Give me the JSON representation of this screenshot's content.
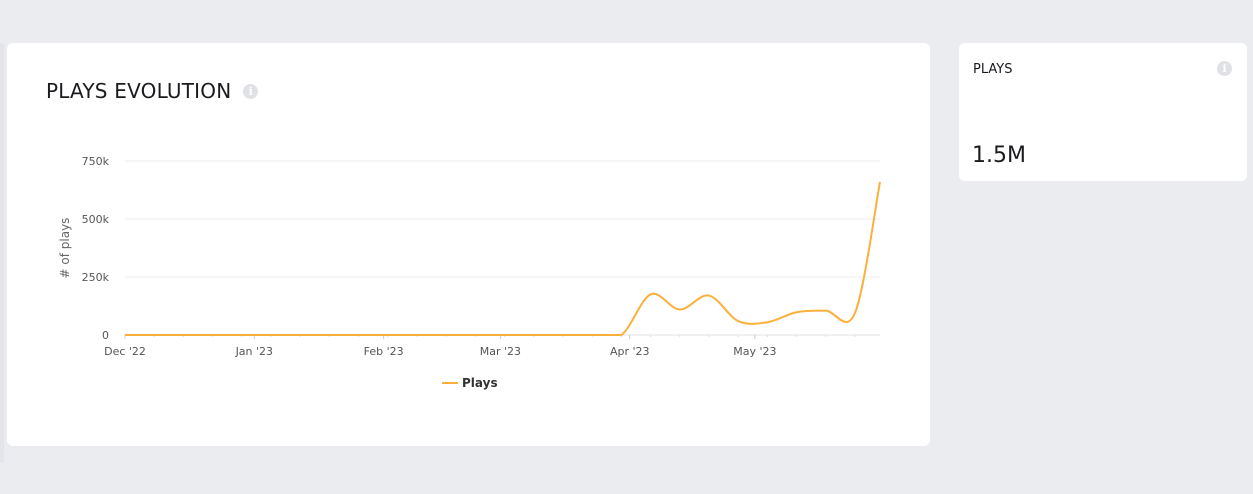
{
  "chart_card": {
    "title": "PLAYS EVOLUTION",
    "info_glyph": "i"
  },
  "stat_card": {
    "title": "PLAYS",
    "value": "1.5M",
    "info_glyph": "i"
  },
  "colors": {
    "accent": "#fbb03b",
    "grid": "#ececec",
    "background": "#eaecf0",
    "card": "#ffffff"
  },
  "chart_data": {
    "type": "line",
    "title": "PLAYS EVOLUTION",
    "xlabel": "",
    "ylabel": "# of plays",
    "ylim": [
      0,
      750000
    ],
    "ytick_values": [
      0,
      250000,
      500000,
      750000
    ],
    "ytick_labels": [
      "0",
      "250k",
      "500k",
      "750k"
    ],
    "xlim": [
      "2022-12-01",
      "2023-05-31"
    ],
    "xtick_dates": [
      "2022-12-01",
      "2023-01-01",
      "2023-02-01",
      "2023-03-01",
      "2023-04-01",
      "2023-05-01"
    ],
    "xtick_labels": [
      "Dec '22",
      "Jan '23",
      "Feb '23",
      "Mar '23",
      "Apr '23",
      "May '23"
    ],
    "legend": {
      "position": "bottom",
      "entries": [
        "Plays"
      ]
    },
    "grid": true,
    "series": [
      {
        "name": "Plays",
        "color": "#fbb03b",
        "points": [
          {
            "x": "2022-12-01",
            "y": 0
          },
          {
            "x": "2022-12-08",
            "y": 0
          },
          {
            "x": "2022-12-15",
            "y": 0
          },
          {
            "x": "2022-12-22",
            "y": 0
          },
          {
            "x": "2022-12-29",
            "y": 0
          },
          {
            "x": "2023-01-05",
            "y": 0
          },
          {
            "x": "2023-01-12",
            "y": 0
          },
          {
            "x": "2023-01-19",
            "y": 0
          },
          {
            "x": "2023-01-26",
            "y": 0
          },
          {
            "x": "2023-02-02",
            "y": 0
          },
          {
            "x": "2023-02-09",
            "y": 0
          },
          {
            "x": "2023-02-16",
            "y": 0
          },
          {
            "x": "2023-02-23",
            "y": 0
          },
          {
            "x": "2023-03-02",
            "y": 0
          },
          {
            "x": "2023-03-09",
            "y": 0
          },
          {
            "x": "2023-03-16",
            "y": 0
          },
          {
            "x": "2023-03-23",
            "y": 0
          },
          {
            "x": "2023-03-30",
            "y": 0
          },
          {
            "x": "2023-04-06",
            "y": 175000
          },
          {
            "x": "2023-04-13",
            "y": 110000
          },
          {
            "x": "2023-04-20",
            "y": 170000
          },
          {
            "x": "2023-04-27",
            "y": 60000
          },
          {
            "x": "2023-05-04",
            "y": 55000
          },
          {
            "x": "2023-05-11",
            "y": 98000
          },
          {
            "x": "2023-05-18",
            "y": 105000
          },
          {
            "x": "2023-05-25",
            "y": 95000
          },
          {
            "x": "2023-05-31",
            "y": 660000
          }
        ]
      }
    ]
  }
}
